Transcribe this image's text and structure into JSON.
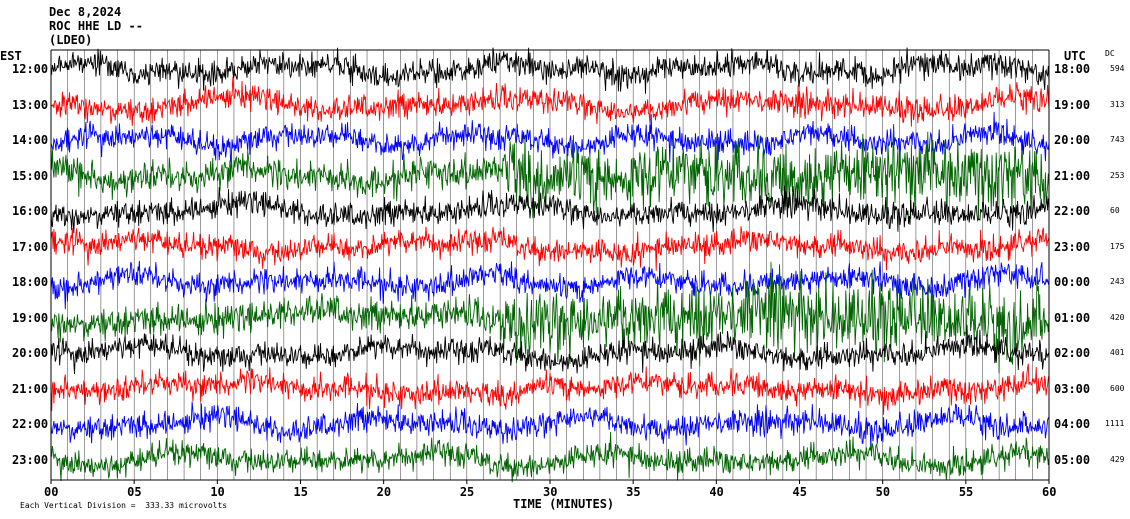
{
  "header": {
    "date": "Dec 8,2024",
    "station": "ROC HHE LD --",
    "network": "(LDEO)"
  },
  "left_axis_label": "EST",
  "right_axis_label": "UTC",
  "dc_label": "DC",
  "x_axis_label": "TIME (MINUTES)",
  "scale_note": "Each Vertical Division =  333.33 microvolts",
  "chart_data": {
    "type": "line",
    "title": "",
    "xlabel": "TIME (MINUTES)",
    "xlim": [
      0,
      60
    ],
    "x_ticks": [
      "00",
      "05",
      "10",
      "15",
      "20",
      "25",
      "30",
      "35",
      "40",
      "45",
      "50",
      "55",
      "60"
    ],
    "trace_colors": [
      "#000000",
      "#ff0000",
      "#0000ff",
      "#006400"
    ],
    "rows": [
      {
        "est": "12:00",
        "utc": "18:00",
        "dc": "594"
      },
      {
        "est": "13:00",
        "utc": "19:00",
        "dc": "313"
      },
      {
        "est": "14:00",
        "utc": "20:00",
        "dc": "743"
      },
      {
        "est": "15:00",
        "utc": "21:00",
        "dc": "253"
      },
      {
        "est": "16:00",
        "utc": "22:00",
        "dc": "60"
      },
      {
        "est": "17:00",
        "utc": "23:00",
        "dc": "175"
      },
      {
        "est": "18:00",
        "utc": "00:00",
        "dc": "243"
      },
      {
        "est": "19:00",
        "utc": "01:00",
        "dc": "420"
      },
      {
        "est": "20:00",
        "utc": "02:00",
        "dc": "401"
      },
      {
        "est": "21:00",
        "utc": "03:00",
        "dc": "600"
      },
      {
        "est": "22:00",
        "utc": "04:00",
        "dc": "1111"
      },
      {
        "est": "23:00",
        "utc": "05:00",
        "dc": "429"
      }
    ]
  }
}
